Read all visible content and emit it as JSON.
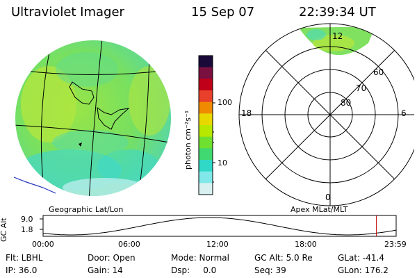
{
  "header": {
    "title": "Ultraviolet Imager",
    "date": "15 Sep 07",
    "time": "22:39:34 UT"
  },
  "colorbar": {
    "unit_label": "photon cm⁻²s⁻¹",
    "ticks": [
      "100",
      "10"
    ],
    "colors": [
      "#1a0a3a",
      "#7a1040",
      "#c00018",
      "#e8402a",
      "#f08a00",
      "#e8d800",
      "#b8e800",
      "#70e030",
      "#40d870",
      "#30d8c8",
      "#80e8e8",
      "#d8f0f0"
    ]
  },
  "left_panel": {
    "caption": "Geographic Lat/Lon"
  },
  "right_panel": {
    "caption": "Apex MLat/MLT",
    "lat_labels": [
      "80",
      "70",
      "60"
    ],
    "mlt_labels": [
      "12",
      "18",
      "6",
      "0"
    ]
  },
  "timeline": {
    "axis_label": "GC Alt",
    "y_ticks": [
      "9.0",
      "1.8"
    ],
    "x_ticks": [
      "00:00",
      "06:00",
      "12:00",
      "18:00",
      "23:59"
    ],
    "current_time_hours": 22.66,
    "marker_color": "#c00000"
  },
  "info": {
    "row1": [
      "Flt: LBHL",
      "Door: Open",
      "Mode: Normal",
      "GC Alt: 5.0 Re",
      "GLat: -41.4"
    ],
    "row2": [
      "IP: 36.0",
      "Gain: 14",
      "Dsp:     0.0",
      "Seq: 39",
      "GLon: 176.2"
    ]
  },
  "palette": {
    "image_base": "#80e060",
    "image_cyan": "#40d8c8",
    "image_yellow": "#c8e840",
    "coast_color": "#2030c0"
  }
}
